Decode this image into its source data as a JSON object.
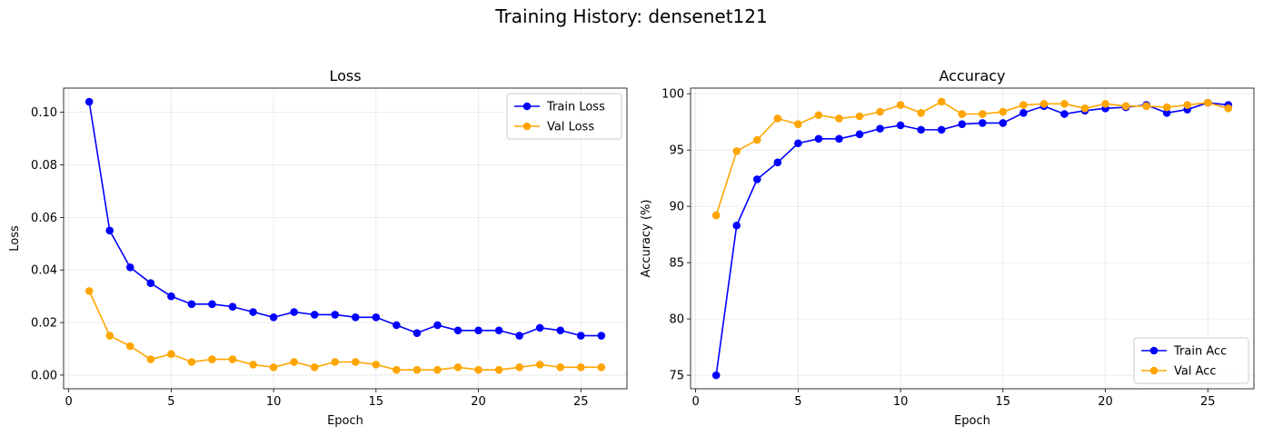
{
  "figure": {
    "title": "Training History: densenet121"
  },
  "chart_data": [
    {
      "type": "line",
      "title": "Loss",
      "xlabel": "Epoch",
      "ylabel": "Loss",
      "xlim": [
        -0.25,
        27.25
      ],
      "ylim": [
        -0.0052,
        0.1092
      ],
      "xticks": [
        0,
        5,
        10,
        15,
        20,
        25
      ],
      "yticks": [
        0.0,
        0.02,
        0.04,
        0.06,
        0.08,
        0.1
      ],
      "ytick_labels": [
        "0.00",
        "0.02",
        "0.04",
        "0.06",
        "0.08",
        "0.10"
      ],
      "grid": true,
      "legend": "top-right",
      "x": [
        1,
        2,
        3,
        4,
        5,
        6,
        7,
        8,
        9,
        10,
        11,
        12,
        13,
        14,
        15,
        16,
        17,
        18,
        19,
        20,
        21,
        22,
        23,
        24,
        25,
        26
      ],
      "series": [
        {
          "name": "Train Loss",
          "color": "#0000ff",
          "values": [
            0.104,
            0.055,
            0.041,
            0.035,
            0.03,
            0.027,
            0.027,
            0.026,
            0.024,
            0.022,
            0.024,
            0.023,
            0.023,
            0.022,
            0.022,
            0.019,
            0.016,
            0.019,
            0.017,
            0.017,
            0.017,
            0.015,
            0.018,
            0.017,
            0.015,
            0.015
          ]
        },
        {
          "name": "Val Loss",
          "color": "#ffa500",
          "values": [
            0.032,
            0.015,
            0.011,
            0.006,
            0.008,
            0.005,
            0.006,
            0.006,
            0.004,
            0.003,
            0.005,
            0.003,
            0.005,
            0.005,
            0.004,
            0.002,
            0.002,
            0.002,
            0.003,
            0.002,
            0.002,
            0.003,
            0.004,
            0.003,
            0.003,
            0.003
          ]
        }
      ]
    },
    {
      "type": "line",
      "title": "Accuracy",
      "xlabel": "Epoch",
      "ylabel": "Accuracy (%)",
      "xlim": [
        -0.25,
        27.25
      ],
      "ylim": [
        73.8,
        100.5
      ],
      "xticks": [
        0,
        5,
        10,
        15,
        20,
        25
      ],
      "yticks": [
        75,
        80,
        85,
        90,
        95,
        100
      ],
      "ytick_labels": [
        "75",
        "80",
        "85",
        "90",
        "95",
        "100"
      ],
      "grid": true,
      "legend": "bottom-right",
      "x": [
        1,
        2,
        3,
        4,
        5,
        6,
        7,
        8,
        9,
        10,
        11,
        12,
        13,
        14,
        15,
        16,
        17,
        18,
        19,
        20,
        21,
        22,
        23,
        24,
        25,
        26
      ],
      "series": [
        {
          "name": "Train Acc",
          "color": "#0000ff",
          "values": [
            75.0,
            88.3,
            92.4,
            93.9,
            95.6,
            96.0,
            96.0,
            96.4,
            96.9,
            97.2,
            96.8,
            96.8,
            97.3,
            97.4,
            97.4,
            98.3,
            98.9,
            98.2,
            98.5,
            98.7,
            98.8,
            99.0,
            98.3,
            98.6,
            99.2,
            99.0
          ]
        },
        {
          "name": "Val Acc",
          "color": "#ffa500",
          "values": [
            89.2,
            94.9,
            95.9,
            97.8,
            97.3,
            98.1,
            97.8,
            98.0,
            98.4,
            99.0,
            98.3,
            99.3,
            98.2,
            98.2,
            98.4,
            99.0,
            99.1,
            99.1,
            98.7,
            99.1,
            98.9,
            98.9,
            98.8,
            99.0,
            99.2,
            98.7
          ]
        }
      ]
    }
  ]
}
